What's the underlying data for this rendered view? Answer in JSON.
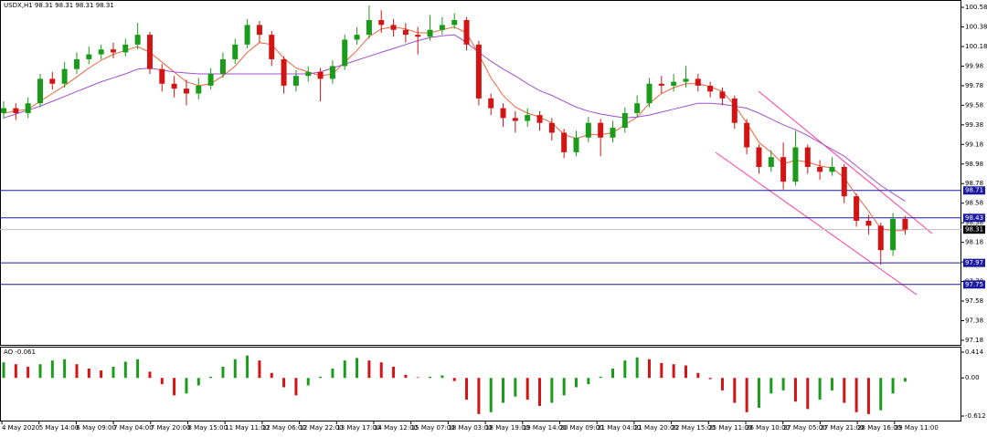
{
  "chart_data": [
    {
      "type": "candlestick",
      "title": "USDX,H1  98.31 98.31 98.31 98.31",
      "up_color": "#1a9c1a",
      "down_color": "#d21414",
      "ylim": [
        97.133,
        100.655
      ],
      "yticks": [
        100.58,
        100.38,
        100.18,
        99.98,
        99.78,
        99.58,
        99.38,
        99.18,
        98.98,
        98.78,
        98.58,
        98.38,
        98.18,
        97.98,
        97.78,
        97.58,
        97.38,
        97.18
      ],
      "x_labels": [
        "4 May 2020",
        "5 May 14:00",
        "6 May 09:00",
        "7 May 04:00",
        "7 May 20:00",
        "8 May 15:00",
        "11 May 11:00",
        "12 May 06:00",
        "12 May 22:00",
        "13 May 17:00",
        "14 May 12:00",
        "15 May 07:00",
        "18 May 03:00",
        "18 May 19:00",
        "19 May 14:00",
        "20 May 09:00",
        "21 May 04:00",
        "21 May 20:00",
        "22 May 15:00",
        "25 May 11:00",
        "26 May 10:00",
        "27 May 05:00",
        "27 May 21:00",
        "28 May 16:00",
        "29 May 11:00"
      ],
      "open": [
        99.5,
        99.55,
        99.5,
        99.6,
        99.85,
        99.8,
        99.95,
        100.05,
        100.1,
        100.15,
        100.12,
        100.2,
        100.3,
        99.95,
        99.8,
        99.75,
        99.7,
        99.78,
        99.9,
        100.05,
        100.2,
        100.4,
        100.3,
        100.05,
        99.78,
        99.88,
        99.92,
        99.85,
        99.98,
        100.25,
        100.3,
        100.45,
        100.4,
        100.35,
        100.3,
        100.28,
        100.35,
        100.4,
        100.45,
        100.2,
        99.65,
        99.55,
        99.45,
        99.42,
        99.48,
        99.4,
        99.3,
        99.1,
        99.25,
        99.4,
        99.25,
        99.35,
        99.5,
        99.6,
        99.8,
        99.78,
        99.82,
        99.85,
        99.78,
        99.72,
        99.65,
        99.4,
        99.15,
        98.95,
        99.05,
        98.8,
        99.15,
        98.95,
        98.9,
        98.95,
        98.65,
        98.4,
        98.35,
        98.1,
        98.42
      ],
      "high": [
        99.62,
        99.6,
        99.66,
        99.9,
        99.92,
        100.02,
        100.12,
        100.18,
        100.2,
        100.22,
        100.26,
        100.42,
        100.33,
        100.0,
        99.88,
        99.84,
        99.86,
        99.96,
        100.12,
        100.26,
        100.46,
        100.44,
        100.34,
        100.08,
        99.94,
        99.98,
        99.96,
        100.04,
        100.3,
        100.38,
        100.6,
        100.55,
        100.46,
        100.42,
        100.38,
        100.5,
        100.48,
        100.52,
        100.48,
        100.24,
        99.7,
        99.6,
        99.52,
        99.55,
        99.52,
        99.45,
        99.34,
        99.32,
        99.46,
        99.44,
        99.42,
        99.56,
        99.68,
        99.86,
        99.88,
        99.9,
        99.98,
        99.9,
        99.82,
        99.76,
        99.68,
        99.44,
        99.18,
        99.12,
        99.2,
        99.32,
        99.18,
        99.02,
        99.05,
        98.98,
        98.68,
        98.46,
        98.38,
        98.48,
        98.45
      ],
      "low": [
        99.44,
        99.43,
        99.45,
        99.56,
        99.74,
        99.76,
        99.9,
        100.0,
        100.05,
        100.06,
        100.08,
        100.15,
        99.9,
        99.72,
        99.66,
        99.58,
        99.64,
        99.74,
        99.86,
        100.0,
        100.16,
        100.22,
        99.98,
        99.7,
        99.72,
        99.82,
        99.62,
        99.8,
        99.94,
        100.2,
        100.26,
        100.32,
        100.28,
        100.22,
        100.1,
        100.24,
        100.3,
        100.36,
        100.14,
        99.58,
        99.48,
        99.36,
        99.3,
        99.36,
        99.32,
        99.22,
        99.04,
        99.06,
        99.2,
        99.06,
        99.2,
        99.3,
        99.46,
        99.56,
        99.7,
        99.72,
        99.76,
        99.72,
        99.66,
        99.58,
        99.34,
        99.08,
        98.88,
        98.9,
        98.72,
        98.76,
        98.88,
        98.82,
        98.86,
        98.58,
        98.34,
        98.26,
        97.95,
        98.04,
        98.26
      ],
      "close": [
        99.55,
        99.5,
        99.6,
        99.85,
        99.8,
        99.95,
        100.05,
        100.1,
        100.15,
        100.12,
        100.2,
        100.3,
        99.95,
        99.8,
        99.75,
        99.7,
        99.78,
        99.9,
        100.05,
        100.2,
        100.4,
        100.3,
        100.05,
        99.78,
        99.88,
        99.92,
        99.85,
        99.98,
        100.25,
        100.3,
        100.45,
        100.4,
        100.35,
        100.3,
        100.28,
        100.35,
        100.4,
        100.45,
        100.2,
        99.65,
        99.55,
        99.45,
        99.42,
        99.48,
        99.4,
        99.3,
        99.1,
        99.25,
        99.4,
        99.25,
        99.35,
        99.5,
        99.6,
        99.8,
        99.78,
        99.82,
        99.85,
        99.78,
        99.72,
        99.65,
        99.4,
        99.15,
        98.95,
        99.05,
        98.8,
        99.15,
        98.95,
        98.9,
        98.95,
        98.65,
        98.4,
        98.35,
        98.1,
        98.42,
        98.31
      ],
      "series": [
        {
          "color": "#e8643c",
          "values": [
            99.5,
            99.52,
            99.54,
            99.62,
            99.7,
            99.78,
            99.87,
            99.96,
            100.04,
            100.1,
            100.14,
            100.18,
            100.12,
            100.02,
            99.92,
            99.82,
            99.78,
            99.8,
            99.88,
            99.98,
            100.12,
            100.22,
            100.2,
            100.06,
            99.96,
            99.92,
            99.88,
            99.9,
            100.02,
            100.14,
            100.28,
            100.36,
            100.38,
            100.36,
            100.32,
            100.32,
            100.35,
            100.38,
            100.32,
            100.1,
            99.86,
            99.68,
            99.56,
            99.5,
            99.46,
            99.4,
            99.28,
            99.24,
            99.28,
            99.28,
            99.3,
            99.38,
            99.46,
            99.6,
            99.7,
            99.76,
            99.8,
            99.8,
            99.77,
            99.72,
            99.58,
            99.4,
            99.2,
            99.1,
            98.98,
            99.02,
            99.0,
            98.96,
            98.94,
            98.84,
            98.66,
            98.5,
            98.32,
            98.3,
            98.3
          ]
        },
        {
          "color": "#a050d0",
          "values": [
            99.45,
            99.49,
            99.53,
            99.57,
            99.62,
            99.67,
            99.72,
            99.77,
            99.82,
            99.86,
            99.9,
            99.95,
            99.96,
            99.94,
            99.92,
            99.91,
            99.9,
            99.9,
            99.9,
            99.9,
            99.9,
            99.9,
            99.9,
            99.9,
            99.9,
            99.9,
            99.92,
            99.96,
            100.0,
            100.04,
            100.08,
            100.12,
            100.16,
            100.2,
            100.24,
            100.27,
            100.29,
            100.3,
            100.22,
            100.12,
            100.03,
            99.95,
            99.88,
            99.8,
            99.73,
            99.68,
            99.62,
            99.56,
            99.52,
            99.49,
            99.47,
            99.45,
            99.46,
            99.48,
            99.51,
            99.54,
            99.57,
            99.6,
            99.6,
            99.59,
            99.57,
            99.55,
            99.5,
            99.44,
            99.38,
            99.33,
            99.27,
            99.2,
            99.13,
            99.06,
            98.96,
            98.86,
            98.76,
            98.68,
            98.6
          ]
        }
      ],
      "levels": [
        98.71,
        98.43,
        97.97,
        97.75
      ],
      "level_color": "#1a1aa0",
      "current_price": 98.31
    },
    {
      "type": "bar",
      "title": "AO -0.061",
      "up_color": "#1a9c1a",
      "down_color": "#d21414",
      "ylim": [
        -0.685,
        0.487
      ],
      "yticks": [
        0.414,
        {
          "value": 0,
          "label": "0.00"
        },
        -0.612
      ],
      "values": [
        0.25,
        0.22,
        0.18,
        0.22,
        0.28,
        0.3,
        0.22,
        0.15,
        0.12,
        0.18,
        0.26,
        0.3,
        0.1,
        -0.1,
        -0.28,
        -0.25,
        -0.12,
        0.02,
        0.18,
        0.3,
        0.36,
        0.28,
        0.08,
        -0.15,
        -0.28,
        -0.12,
        0.02,
        0.15,
        0.28,
        0.32,
        0.28,
        0.25,
        0.18,
        0.05,
        0.01,
        0.02,
        0.04,
        -0.05,
        -0.35,
        -0.58,
        -0.55,
        -0.4,
        -0.3,
        -0.35,
        -0.45,
        -0.4,
        -0.28,
        -0.15,
        -0.1,
        0.02,
        0.15,
        0.28,
        0.33,
        0.3,
        0.24,
        0.22,
        0.2,
        0.08,
        -0.02,
        -0.2,
        -0.4,
        -0.55,
        -0.48,
        -0.25,
        -0.2,
        -0.38,
        -0.5,
        -0.35,
        -0.2,
        -0.4,
        -0.55,
        -0.58,
        -0.52,
        -0.25,
        -0.06
      ]
    }
  ]
}
